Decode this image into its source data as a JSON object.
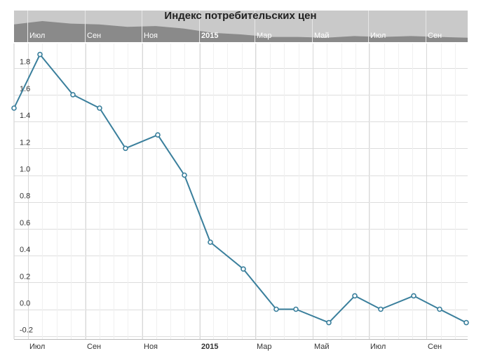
{
  "chart_data": {
    "type": "line",
    "title": "Индекс потребительских цен",
    "x": [
      "2014-06",
      "2014-07",
      "2014-08",
      "2014-09",
      "2014-10",
      "2014-11",
      "2014-12",
      "2015-01",
      "2015-02",
      "2015-03",
      "2015-04",
      "2015-05",
      "2015-06",
      "2015-07",
      "2015-08",
      "2015-09",
      "2015-10"
    ],
    "series": [
      {
        "values": [
          1.5,
          1.9,
          1.6,
          1.5,
          1.2,
          1.3,
          1.0,
          0.5,
          0.3,
          0.0,
          0.0,
          -0.1,
          0.1,
          0.0,
          0.1,
          0.0,
          -0.1
        ],
        "color": "#3a7f9c"
      }
    ],
    "y_ticks": [
      "1.8",
      "1.6",
      "1.4",
      "1.2",
      "1.0",
      "0.8",
      "0.6",
      "0.4",
      "0.2",
      "0.0",
      "-0.2"
    ],
    "x_ticks": [
      {
        "label": "Июл",
        "bold": false
      },
      {
        "label": "Сен",
        "bold": false
      },
      {
        "label": "Ноя",
        "bold": false
      },
      {
        "label": "2015",
        "bold": true
      },
      {
        "label": "Мар",
        "bold": false
      },
      {
        "label": "Май",
        "bold": false
      },
      {
        "label": "Июл",
        "bold": false
      },
      {
        "label": "Сен",
        "bold": false
      }
    ],
    "ylim": [
      -0.2,
      2.0
    ],
    "grid": true,
    "navigator": true
  }
}
